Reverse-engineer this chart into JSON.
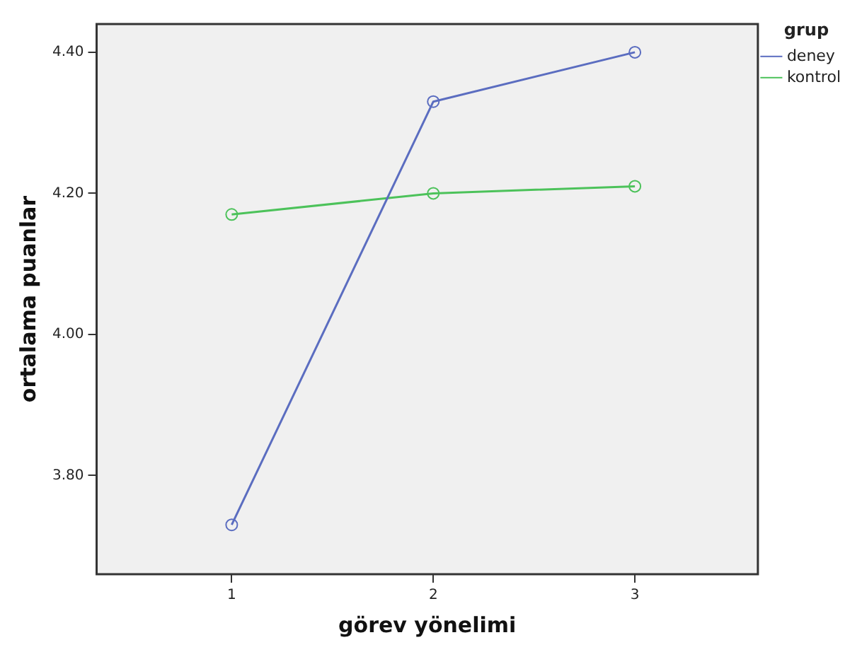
{
  "chart_data": {
    "type": "line",
    "xlabel": "görev yönelimi",
    "ylabel": "ortalama puanlar",
    "legend_title": "grup",
    "x": [
      1,
      2,
      3
    ],
    "series": [
      {
        "name": "deney",
        "color": "#5b6dc0",
        "values": [
          3.73,
          4.33,
          4.4
        ]
      },
      {
        "name": "kontrol",
        "color": "#4cc25a",
        "values": [
          4.17,
          4.2,
          4.21
        ]
      }
    ],
    "xlim": [
      0.33,
      3.61
    ],
    "xticks": [
      {
        "value": 1,
        "label": "1"
      },
      {
        "value": 2,
        "label": "2"
      },
      {
        "value": 3,
        "label": "3"
      }
    ],
    "ylim": [
      3.66,
      4.44
    ],
    "yticks": [
      {
        "value": 3.8,
        "label": "3.80"
      },
      {
        "value": 4.0,
        "label": "4.00"
      },
      {
        "value": 4.2,
        "label": "4.20"
      },
      {
        "value": 4.4,
        "label": "4.40"
      }
    ],
    "grid": false,
    "legend": "top right",
    "marker": "circle",
    "line_style": "solid"
  }
}
